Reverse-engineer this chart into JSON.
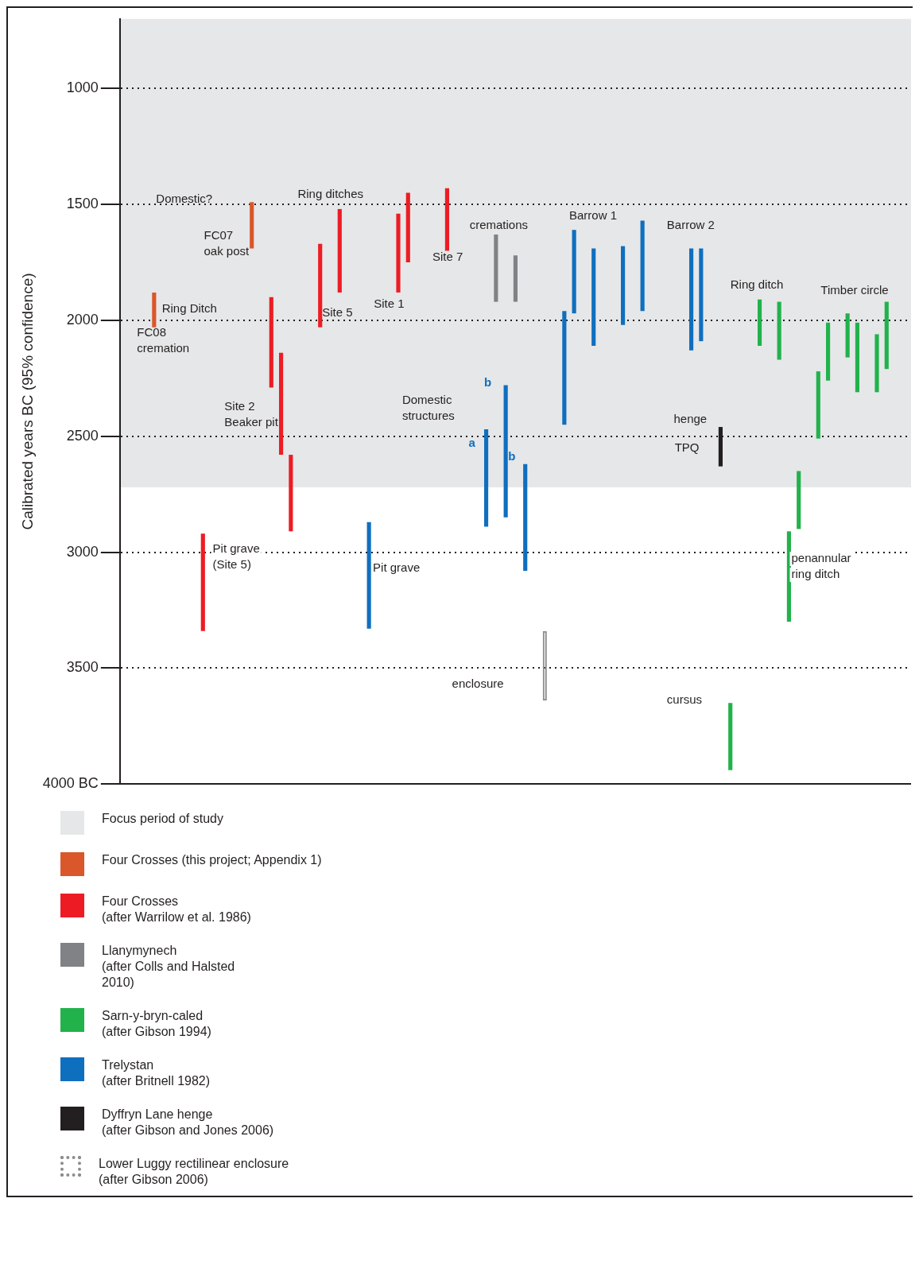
{
  "chart_data": {
    "type": "bar",
    "ylabel": "Calibrated years BC (95% confidence)",
    "categories": [
      null,
      null,
      null,
      null,
      null,
      null,
      null,
      null,
      null,
      null,
      null,
      null,
      null,
      null,
      null,
      null,
      null,
      null,
      null,
      null,
      null,
      null,
      null,
      null,
      null,
      null,
      null,
      null,
      null,
      null,
      null,
      null,
      null,
      null,
      null,
      null,
      null,
      null,
      null,
      null,
      null,
      null,
      null,
      null,
      null,
      null,
      null,
      null,
      null,
      null,
      null,
      null,
      null,
      null,
      null,
      null,
      null,
      null,
      null,
      null,
      null,
      null,
      null,
      null,
      null,
      null,
      null,
      null,
      null,
      null,
      null,
      null,
      null,
      null,
      null,
      null,
      null,
      null,
      null,
      null,
      null
    ],
    "ylim": [
      4000,
      700
    ],
    "yticks": [
      1000,
      1500,
      2000,
      2500,
      3000,
      3500,
      {
        "value": 4000,
        "label": "4000 BC"
      }
    ],
    "grid": "y",
    "legend": "bottom",
    "tick_labels": "y",
    "bands": [
      {
        "axis": "y",
        "from": 700,
        "to": 2720,
        "label": "Focus period of study",
        "color": "#e6e7e8"
      }
    ],
    "series": [
      {
        "name": "Four Crosses (this project; Appendix 1)",
        "color": "#d9572b",
        "values": [
          null,
          null,
          null,
          150,
          null,
          null,
          null,
          null,
          null,
          null,
          null,
          null,
          null,
          200,
          null,
          null,
          null,
          null,
          null,
          null,
          null,
          null,
          null,
          null,
          null,
          null,
          null,
          null,
          null,
          null,
          null,
          null,
          null,
          null,
          null,
          null,
          null,
          null,
          null,
          null,
          null,
          null,
          null,
          null,
          null,
          null,
          null,
          null,
          null,
          null,
          null,
          null,
          null,
          null,
          null,
          null,
          null,
          null,
          null,
          null,
          null,
          null,
          null,
          null,
          null,
          null,
          null,
          null,
          null,
          null,
          null,
          null,
          null,
          null,
          null,
          null,
          null,
          null,
          null,
          null,
          null
        ],
        "base": [
          null,
          null,
          null,
          1880,
          null,
          null,
          null,
          null,
          null,
          null,
          null,
          null,
          null,
          1490,
          null,
          null,
          null,
          null,
          null,
          null,
          null,
          null,
          null,
          null,
          null,
          null,
          null,
          null,
          null,
          null,
          null,
          null,
          null,
          null,
          null,
          null,
          null,
          null,
          null,
          null,
          null,
          null,
          null,
          null,
          null,
          null,
          null,
          null,
          null,
          null,
          null,
          null,
          null,
          null,
          null,
          null,
          null,
          null,
          null,
          null,
          null,
          null,
          null,
          null,
          null,
          null,
          null,
          null,
          null,
          null,
          null,
          null,
          null,
          null,
          null,
          null,
          null,
          null,
          null,
          null,
          null
        ]
      },
      {
        "name": "Four Crosses\n(after Warrilow et al. 1986)",
        "color": "#ed1c24",
        "values": [
          null,
          null,
          null,
          null,
          null,
          null,
          null,
          null,
          420,
          null,
          null,
          null,
          null,
          null,
          null,
          390,
          440,
          330,
          null,
          null,
          360,
          null,
          360,
          null,
          null,
          null,
          null,
          null,
          340,
          300,
          null,
          null,
          null,
          270,
          null,
          null,
          null,
          null,
          null,
          null,
          null,
          null,
          null,
          null,
          null,
          null,
          null,
          null,
          null,
          null,
          null,
          null,
          null,
          null,
          null,
          null,
          null,
          null,
          null,
          null,
          null,
          null,
          null,
          null,
          null,
          null,
          null,
          null,
          null,
          null,
          null,
          null,
          null,
          null,
          null,
          null,
          null,
          null,
          null,
          null,
          null
        ],
        "base": [
          null,
          null,
          null,
          null,
          null,
          null,
          null,
          null,
          2920,
          null,
          null,
          null,
          null,
          null,
          null,
          1900,
          2140,
          2580,
          null,
          null,
          1670,
          null,
          1520,
          null,
          null,
          null,
          null,
          null,
          1540,
          1450,
          null,
          null,
          null,
          1430,
          null,
          null,
          null,
          null,
          null,
          null,
          null,
          null,
          null,
          null,
          null,
          null,
          null,
          null,
          null,
          null,
          null,
          null,
          null,
          null,
          null,
          null,
          null,
          null,
          null,
          null,
          null,
          null,
          null,
          null,
          null,
          null,
          null,
          null,
          null,
          null,
          null,
          null,
          null,
          null,
          null,
          null,
          null,
          null,
          null,
          null,
          null
        ]
      },
      {
        "name": "Llanymynech\n(after Colls and Halsted\n2010)",
        "color": "#808285",
        "values": [
          null,
          null,
          null,
          null,
          null,
          null,
          null,
          null,
          null,
          null,
          null,
          null,
          null,
          null,
          null,
          null,
          null,
          null,
          null,
          null,
          null,
          null,
          null,
          null,
          null,
          null,
          null,
          null,
          null,
          null,
          null,
          null,
          null,
          null,
          null,
          null,
          null,
          null,
          290,
          null,
          200,
          null,
          null,
          null,
          null,
          null,
          null,
          null,
          null,
          null,
          null,
          null,
          null,
          null,
          null,
          null,
          null,
          null,
          null,
          null,
          null,
          null,
          null,
          null,
          null,
          null,
          null,
          null,
          null,
          null,
          null,
          null,
          null,
          null,
          null,
          null,
          null,
          null,
          null,
          null,
          null
        ],
        "base": [
          null,
          null,
          null,
          null,
          null,
          null,
          null,
          null,
          null,
          null,
          null,
          null,
          null,
          null,
          null,
          null,
          null,
          null,
          null,
          null,
          null,
          null,
          null,
          null,
          null,
          null,
          null,
          null,
          null,
          null,
          null,
          null,
          null,
          null,
          null,
          null,
          null,
          null,
          1630,
          null,
          1720,
          null,
          null,
          null,
          null,
          null,
          null,
          null,
          null,
          null,
          null,
          null,
          null,
          null,
          null,
          null,
          null,
          null,
          null,
          null,
          null,
          null,
          null,
          null,
          null,
          null,
          null,
          null,
          null,
          null,
          null,
          null,
          null,
          null,
          null,
          null,
          null,
          null,
          null,
          null,
          null
        ]
      },
      {
        "name": "Sarn-y-bryn-caled\n(after Gibson 1994)",
        "color": "#22b24c",
        "values": [
          null,
          null,
          null,
          null,
          null,
          null,
          null,
          null,
          null,
          null,
          null,
          null,
          null,
          null,
          null,
          null,
          null,
          null,
          null,
          null,
          null,
          null,
          null,
          null,
          null,
          null,
          null,
          null,
          null,
          null,
          null,
          null,
          null,
          null,
          null,
          null,
          null,
          null,
          null,
          null,
          null,
          null,
          null,
          null,
          null,
          null,
          null,
          null,
          null,
          null,
          null,
          null,
          null,
          null,
          null,
          null,
          null,
          null,
          null,
          null,
          null,
          null,
          290,
          null,
          null,
          200,
          null,
          250,
          390,
          250,
          null,
          290,
          250,
          null,
          190,
          300,
          null,
          250,
          290,
          null,
          null
        ],
        "base": [
          null,
          null,
          null,
          null,
          null,
          null,
          null,
          null,
          null,
          null,
          null,
          null,
          null,
          null,
          null,
          null,
          null,
          null,
          null,
          null,
          null,
          null,
          null,
          null,
          null,
          null,
          null,
          null,
          null,
          null,
          null,
          null,
          null,
          null,
          null,
          null,
          null,
          null,
          null,
          null,
          null,
          null,
          null,
          null,
          null,
          null,
          null,
          null,
          null,
          null,
          null,
          null,
          null,
          null,
          null,
          null,
          null,
          null,
          null,
          null,
          null,
          null,
          3650,
          null,
          null,
          1910,
          null,
          1920,
          2910,
          2650,
          null,
          2220,
          2010,
          null,
          1970,
          2010,
          null,
          2060,
          1920,
          null,
          null
        ]
      },
      {
        "name": "Trelystan\n(after Britnell 1982)",
        "color": "#0f6fbf",
        "values": [
          null,
          null,
          null,
          null,
          null,
          null,
          null,
          null,
          null,
          null,
          null,
          null,
          null,
          null,
          null,
          null,
          null,
          null,
          null,
          null,
          null,
          null,
          null,
          null,
          null,
          460,
          null,
          null,
          null,
          null,
          null,
          null,
          null,
          null,
          null,
          null,
          null,
          420,
          null,
          570,
          null,
          460,
          null,
          null,
          null,
          490,
          360,
          null,
          420,
          null,
          null,
          340,
          null,
          390,
          null,
          null,
          null,
          null,
          440,
          400,
          null,
          null,
          null,
          null,
          null,
          null,
          null,
          null,
          null,
          null,
          null,
          null,
          null,
          null,
          null,
          null,
          null,
          null,
          null,
          null,
          null
        ],
        "base": [
          null,
          null,
          null,
          null,
          null,
          null,
          null,
          null,
          null,
          null,
          null,
          null,
          null,
          null,
          null,
          null,
          null,
          null,
          null,
          null,
          null,
          null,
          null,
          null,
          null,
          2870,
          null,
          null,
          null,
          null,
          null,
          null,
          null,
          null,
          null,
          null,
          null,
          2470,
          null,
          2280,
          null,
          2620,
          null,
          null,
          null,
          1960,
          1610,
          null,
          1690,
          null,
          null,
          1680,
          null,
          1570,
          null,
          null,
          null,
          null,
          1690,
          1690,
          null,
          null,
          null,
          null,
          null,
          null,
          null,
          null,
          null,
          null,
          null,
          null,
          null,
          null,
          null,
          null,
          null,
          null,
          null,
          null,
          null
        ]
      },
      {
        "name": "Dyffryn Lane henge\n(after Gibson and Jones 2006)",
        "color": "#231f20",
        "values": [
          null,
          null,
          null,
          null,
          null,
          null,
          null,
          null,
          null,
          null,
          null,
          null,
          null,
          null,
          null,
          null,
          null,
          null,
          null,
          null,
          null,
          null,
          null,
          null,
          null,
          null,
          null,
          null,
          null,
          null,
          null,
          null,
          null,
          null,
          null,
          null,
          null,
          null,
          null,
          null,
          null,
          null,
          null,
          null,
          null,
          null,
          null,
          null,
          null,
          null,
          null,
          null,
          null,
          null,
          null,
          null,
          null,
          null,
          null,
          null,
          null,
          170,
          null,
          null,
          null,
          null,
          null,
          null,
          null,
          null,
          null,
          null,
          null,
          null,
          null,
          null,
          null,
          null,
          null,
          null,
          null
        ],
        "base": [
          null,
          null,
          null,
          null,
          null,
          null,
          null,
          null,
          null,
          null,
          null,
          null,
          null,
          null,
          null,
          null,
          null,
          null,
          null,
          null,
          null,
          null,
          null,
          null,
          null,
          null,
          null,
          null,
          null,
          null,
          null,
          null,
          null,
          null,
          null,
          null,
          null,
          null,
          null,
          null,
          null,
          null,
          null,
          null,
          null,
          null,
          null,
          null,
          null,
          null,
          null,
          null,
          null,
          null,
          null,
          null,
          null,
          null,
          null,
          null,
          null,
          2460,
          null,
          null,
          null,
          null,
          null,
          null,
          null,
          null,
          null,
          null,
          null,
          null,
          null,
          null,
          null,
          null,
          null,
          null,
          null
        ]
      },
      {
        "name": "Lower Luggy rectilinear enclosure\n(after Gibson 2006)",
        "color": "#8c8c8c",
        "line_style": "dotted",
        "values": [
          null,
          null,
          null,
          null,
          null,
          null,
          null,
          null,
          null,
          null,
          null,
          null,
          null,
          null,
          null,
          null,
          null,
          null,
          null,
          null,
          null,
          null,
          null,
          null,
          null,
          null,
          null,
          null,
          null,
          null,
          null,
          null,
          null,
          null,
          null,
          null,
          null,
          null,
          null,
          null,
          null,
          null,
          null,
          300,
          null,
          null,
          null,
          null,
          null,
          null,
          null,
          null,
          null,
          null,
          null,
          null,
          null,
          null,
          null,
          null,
          null,
          null,
          null,
          null,
          null,
          null,
          null,
          null,
          null,
          null,
          null,
          null,
          null,
          null,
          null,
          null,
          null,
          null,
          null,
          null,
          null
        ],
        "base": [
          null,
          null,
          null,
          null,
          null,
          null,
          null,
          null,
          null,
          null,
          null,
          null,
          null,
          null,
          null,
          null,
          null,
          null,
          null,
          null,
          null,
          null,
          null,
          null,
          null,
          null,
          null,
          null,
          null,
          null,
          null,
          null,
          null,
          null,
          null,
          null,
          null,
          null,
          null,
          null,
          null,
          null,
          null,
          3340,
          null,
          null,
          null,
          null,
          null,
          null,
          null,
          null,
          null,
          null,
          null,
          null,
          null,
          null,
          null,
          null,
          null,
          null,
          null,
          null,
          null,
          null,
          null,
          null,
          null,
          null,
          null,
          null,
          null,
          null,
          null,
          null,
          null,
          null,
          null,
          null,
          null
        ]
      }
    ],
    "annotations": [
      "Domestic?",
      "FC07\noak post",
      "Ring Ditch",
      "FC08\ncremation",
      "Ring ditches",
      "Site 5",
      "Site 1",
      "Site 7",
      "cremations",
      "Site 2\nBeaker pit",
      "Pit grave\n(Site 5)",
      "Pit grave",
      "Domestic\nstructures",
      "a",
      "b",
      "b",
      "enclosure",
      "Barrow 1",
      "Barrow 2",
      "henge",
      "TPQ",
      "cursus",
      "Ring ditch",
      "Timber circle",
      "penannular\nring ditch"
    ]
  }
}
